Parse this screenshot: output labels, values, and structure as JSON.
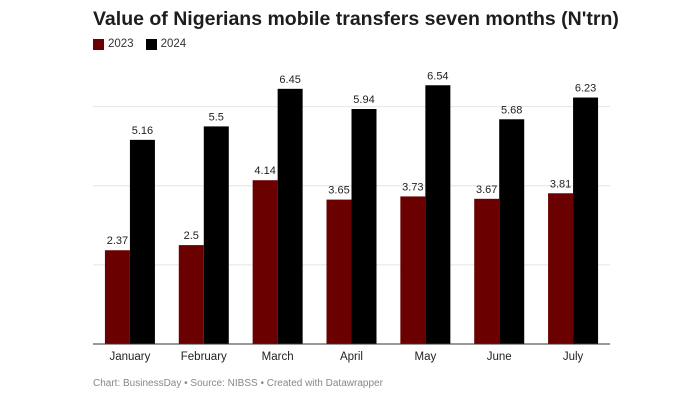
{
  "chart_data": {
    "type": "bar",
    "title": "Value of Nigerians mobile transfers seven months (N'trn)",
    "categories": [
      "January",
      "February",
      "March",
      "April",
      "May",
      "June",
      "July"
    ],
    "series": [
      {
        "name": "2023",
        "color": "#6b0000",
        "values": [
          2.37,
          2.5,
          4.14,
          3.65,
          3.73,
          3.67,
          3.81
        ]
      },
      {
        "name": "2024",
        "color": "#000000",
        "values": [
          5.16,
          5.5,
          6.45,
          5.94,
          6.54,
          5.68,
          6.23
        ]
      }
    ],
    "ylim": [
      0,
      8
    ],
    "gridlines": [
      2,
      4,
      6
    ],
    "grid": true,
    "legend": "top-left",
    "xlabel": "",
    "ylabel": ""
  },
  "footer": {
    "text": "Chart: BusinessDay  • Source: NIBSS • Created with Datawrapper"
  }
}
